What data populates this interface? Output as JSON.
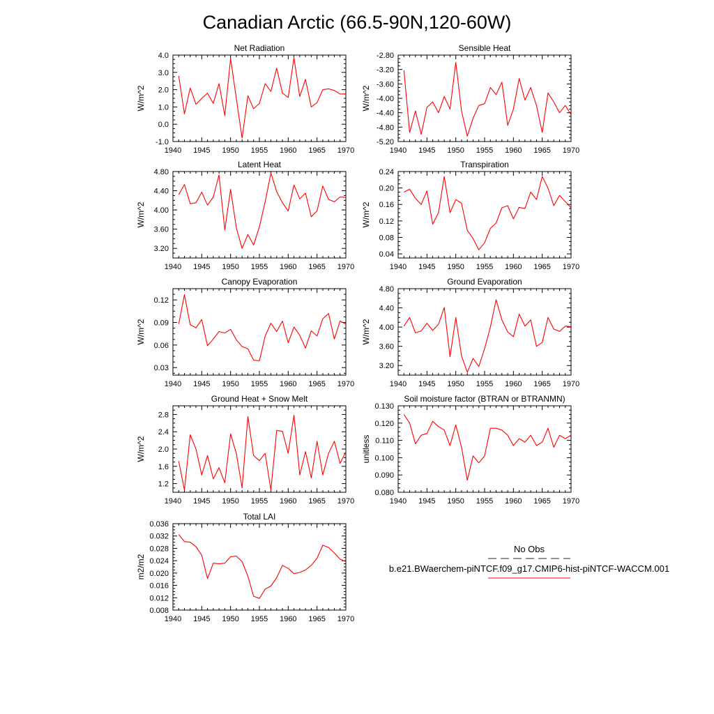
{
  "title": "Canadian Arctic (66.5-90N,120-60W)",
  "series_color": "#ff0000",
  "obs_color": "#222222",
  "legend": {
    "obs_label": "No Obs",
    "model_label": "b.e21.BWaerchem-piNTCF.f09_g17.CMIP6-hist-piNTCF-WACCM.001"
  },
  "chart_data": [
    {
      "type": "line",
      "title": "Net Radiation",
      "ylabel": "W/m^2",
      "xlim": [
        1940,
        1970
      ],
      "ylim": [
        -1.0,
        4.0
      ],
      "x_ticks": [
        1940,
        1945,
        1950,
        1955,
        1960,
        1965,
        1970
      ],
      "y_ticks": [
        -1.0,
        0.0,
        1.0,
        2.0,
        3.0,
        4.0
      ],
      "y_tick_labels": [
        "-1.0",
        "0.0",
        "1.0",
        "2.0",
        "3.0",
        "4.0"
      ],
      "x": [
        1941,
        1942,
        1943,
        1944,
        1945,
        1946,
        1947,
        1948,
        1949,
        1950,
        1951,
        1952,
        1953,
        1954,
        1955,
        1956,
        1957,
        1958,
        1959,
        1960,
        1961,
        1962,
        1963,
        1964,
        1965,
        1966,
        1967,
        1968,
        1969,
        1970
      ],
      "values": [
        2.8,
        0.6,
        2.1,
        1.15,
        1.5,
        1.8,
        1.2,
        2.35,
        0.5,
        3.8,
        1.5,
        -0.8,
        1.65,
        0.9,
        1.2,
        2.35,
        1.9,
        3.25,
        1.8,
        1.55,
        3.85,
        1.6,
        2.6,
        1.0,
        1.25,
        2.0,
        2.05,
        1.95,
        1.75,
        1.75
      ]
    },
    {
      "type": "line",
      "title": "Sensible Heat",
      "ylabel": "W/m^2",
      "xlim": [
        1940,
        1970
      ],
      "ylim": [
        -5.2,
        -2.8
      ],
      "x_ticks": [
        1940,
        1945,
        1950,
        1955,
        1960,
        1965,
        1970
      ],
      "y_ticks": [
        -5.2,
        -4.8,
        -4.4,
        -4.0,
        -3.6,
        -3.2,
        -2.8
      ],
      "y_tick_labels": [
        "-5.20",
        "-4.80",
        "-4.40",
        "-4.00",
        "-3.60",
        "-3.20",
        "-2.80"
      ],
      "x": [
        1941,
        1942,
        1943,
        1944,
        1945,
        1946,
        1947,
        1948,
        1949,
        1950,
        1951,
        1952,
        1953,
        1954,
        1955,
        1956,
        1957,
        1958,
        1959,
        1960,
        1961,
        1962,
        1963,
        1964,
        1965,
        1966,
        1967,
        1968,
        1969,
        1970
      ],
      "values": [
        -3.22,
        -4.95,
        -4.35,
        -5.0,
        -4.25,
        -4.1,
        -4.4,
        -3.95,
        -4.3,
        -3.0,
        -4.35,
        -5.05,
        -4.55,
        -4.2,
        -4.15,
        -3.7,
        -3.9,
        -3.55,
        -4.75,
        -4.3,
        -3.45,
        -4.05,
        -3.7,
        -4.2,
        -4.95,
        -3.85,
        -4.1,
        -4.4,
        -4.2,
        -4.45
      ]
    },
    {
      "type": "line",
      "title": "Latent Heat",
      "ylabel": "W/m^2",
      "xlim": [
        1940,
        1970
      ],
      "ylim": [
        3.0,
        4.8
      ],
      "x_ticks": [
        1940,
        1945,
        1950,
        1955,
        1960,
        1965,
        1970
      ],
      "y_ticks": [
        3.2,
        3.6,
        4.0,
        4.4,
        4.8
      ],
      "y_tick_labels": [
        "3.20",
        "3.60",
        "4.00",
        "4.40",
        "4.80"
      ],
      "x": [
        1941,
        1942,
        1943,
        1944,
        1945,
        1946,
        1947,
        1948,
        1949,
        1950,
        1951,
        1952,
        1953,
        1954,
        1955,
        1956,
        1957,
        1958,
        1959,
        1960,
        1961,
        1962,
        1963,
        1964,
        1965,
        1966,
        1967,
        1968,
        1969,
        1970
      ],
      "values": [
        4.32,
        4.53,
        4.13,
        4.15,
        4.37,
        4.1,
        4.27,
        4.73,
        3.58,
        4.43,
        3.63,
        3.2,
        3.49,
        3.27,
        3.65,
        4.17,
        4.77,
        4.38,
        4.15,
        3.98,
        4.52,
        4.23,
        4.35,
        3.86,
        3.98,
        4.5,
        4.22,
        4.17,
        4.27,
        4.26
      ]
    },
    {
      "type": "line",
      "title": "Transpiration",
      "ylabel": "W/m^2",
      "xlim": [
        1940,
        1970
      ],
      "ylim": [
        0.03,
        0.24
      ],
      "x_ticks": [
        1940,
        1945,
        1950,
        1955,
        1960,
        1965,
        1970
      ],
      "y_ticks": [
        0.04,
        0.08,
        0.12,
        0.16,
        0.2,
        0.24
      ],
      "y_tick_labels": [
        "0.04",
        "0.08",
        "0.12",
        "0.16",
        "0.20",
        "0.24"
      ],
      "x": [
        1941,
        1942,
        1943,
        1944,
        1945,
        1946,
        1947,
        1948,
        1949,
        1950,
        1951,
        1952,
        1953,
        1954,
        1955,
        1956,
        1957,
        1958,
        1959,
        1960,
        1961,
        1962,
        1963,
        1964,
        1965,
        1966,
        1967,
        1968,
        1969,
        1970
      ],
      "values": [
        0.19,
        0.197,
        0.175,
        0.16,
        0.193,
        0.112,
        0.14,
        0.228,
        0.14,
        0.172,
        0.163,
        0.097,
        0.077,
        0.05,
        0.067,
        0.102,
        0.115,
        0.152,
        0.157,
        0.125,
        0.153,
        0.15,
        0.19,
        0.172,
        0.228,
        0.2,
        0.157,
        0.182,
        0.167,
        0.152
      ]
    },
    {
      "type": "line",
      "title": "Canopy Evaporation",
      "ylabel": "W/m^2",
      "xlim": [
        1940,
        1970
      ],
      "ylim": [
        0.02,
        0.135
      ],
      "x_ticks": [
        1940,
        1945,
        1950,
        1955,
        1960,
        1965,
        1970
      ],
      "y_ticks": [
        0.03,
        0.06,
        0.09,
        0.12
      ],
      "y_tick_labels": [
        "0.03",
        "0.06",
        "0.09",
        "0.12"
      ],
      "x": [
        1941,
        1942,
        1943,
        1944,
        1945,
        1946,
        1947,
        1948,
        1949,
        1950,
        1951,
        1952,
        1953,
        1954,
        1955,
        1956,
        1957,
        1958,
        1959,
        1960,
        1961,
        1962,
        1963,
        1964,
        1965,
        1966,
        1967,
        1968,
        1969,
        1970
      ],
      "values": [
        0.088,
        0.127,
        0.087,
        0.083,
        0.094,
        0.059,
        0.068,
        0.078,
        0.076,
        0.081,
        0.067,
        0.058,
        0.055,
        0.04,
        0.039,
        0.072,
        0.089,
        0.078,
        0.092,
        0.063,
        0.084,
        0.073,
        0.056,
        0.079,
        0.072,
        0.095,
        0.102,
        0.068,
        0.092,
        0.088
      ]
    },
    {
      "type": "line",
      "title": "Ground Evaporation",
      "ylabel": "W/m^2",
      "xlim": [
        1940,
        1970
      ],
      "ylim": [
        3.0,
        4.8
      ],
      "x_ticks": [
        1940,
        1945,
        1950,
        1955,
        1960,
        1965,
        1970
      ],
      "y_ticks": [
        3.2,
        3.6,
        4.0,
        4.4,
        4.8
      ],
      "y_tick_labels": [
        "3.20",
        "3.60",
        "4.00",
        "4.40",
        "4.80"
      ],
      "x": [
        1941,
        1942,
        1943,
        1944,
        1945,
        1946,
        1947,
        1948,
        1949,
        1950,
        1951,
        1952,
        1953,
        1954,
        1955,
        1956,
        1957,
        1958,
        1959,
        1960,
        1961,
        1962,
        1963,
        1964,
        1965,
        1966,
        1967,
        1968,
        1969,
        1970
      ],
      "values": [
        4.02,
        4.2,
        3.88,
        3.92,
        4.08,
        3.93,
        4.06,
        4.41,
        3.38,
        4.2,
        3.4,
        3.06,
        3.35,
        3.18,
        3.55,
        4.0,
        4.57,
        4.15,
        3.9,
        3.8,
        4.27,
        4.02,
        4.15,
        3.6,
        3.68,
        4.2,
        3.96,
        3.91,
        4.02,
        4.01
      ]
    },
    {
      "type": "line",
      "title": "Ground Heat + Snow Melt",
      "ylabel": "W/m^2",
      "xlim": [
        1940,
        1970
      ],
      "ylim": [
        1.0,
        3.0
      ],
      "x_ticks": [
        1940,
        1945,
        1950,
        1955,
        1960,
        1965,
        1970
      ],
      "y_ticks": [
        1.2,
        1.6,
        2.0,
        2.4,
        2.8
      ],
      "y_tick_labels": [
        "1.2",
        "1.6",
        "2.0",
        "2.4",
        "2.8"
      ],
      "x": [
        1941,
        1942,
        1943,
        1944,
        1945,
        1946,
        1947,
        1948,
        1949,
        1950,
        1951,
        1952,
        1953,
        1954,
        1955,
        1956,
        1957,
        1958,
        1959,
        1960,
        1961,
        1962,
        1963,
        1964,
        1965,
        1966,
        1967,
        1968,
        1969,
        1970
      ],
      "values": [
        1.72,
        1.05,
        2.33,
        2.0,
        1.4,
        1.85,
        1.31,
        1.57,
        1.22,
        2.35,
        1.9,
        1.1,
        2.75,
        1.85,
        1.73,
        1.9,
        1.05,
        2.43,
        2.41,
        1.9,
        2.78,
        1.4,
        1.94,
        1.33,
        2.18,
        1.4,
        1.9,
        2.18,
        1.67,
        1.93
      ]
    },
    {
      "type": "line",
      "title": "Soil moisture factor (BTRAN or BTRANMN)",
      "ylabel": "unitless",
      "xlim": [
        1940,
        1970
      ],
      "ylim": [
        0.08,
        0.13
      ],
      "x_ticks": [
        1940,
        1945,
        1950,
        1955,
        1960,
        1965,
        1970
      ],
      "y_ticks": [
        0.08,
        0.09,
        0.1,
        0.11,
        0.12,
        0.13
      ],
      "y_tick_labels": [
        "0.080",
        "0.090",
        "0.100",
        "0.110",
        "0.120",
        "0.130"
      ],
      "x": [
        1941,
        1942,
        1943,
        1944,
        1945,
        1946,
        1947,
        1948,
        1949,
        1950,
        1951,
        1952,
        1953,
        1954,
        1955,
        1956,
        1957,
        1958,
        1959,
        1960,
        1961,
        1962,
        1963,
        1964,
        1965,
        1966,
        1967,
        1968,
        1969,
        1970
      ],
      "values": [
        0.125,
        0.12,
        0.108,
        0.113,
        0.114,
        0.121,
        0.118,
        0.116,
        0.107,
        0.119,
        0.106,
        0.087,
        0.101,
        0.097,
        0.101,
        0.117,
        0.117,
        0.116,
        0.113,
        0.107,
        0.111,
        0.109,
        0.113,
        0.107,
        0.109,
        0.117,
        0.106,
        0.113,
        0.111,
        0.113
      ]
    },
    {
      "type": "line",
      "title": "Total LAI",
      "ylabel": "m2/m2",
      "xlim": [
        1940,
        1970
      ],
      "ylim": [
        0.008,
        0.036
      ],
      "x_ticks": [
        1940,
        1945,
        1950,
        1955,
        1960,
        1965,
        1970
      ],
      "y_ticks": [
        0.008,
        0.012,
        0.016,
        0.02,
        0.024,
        0.028,
        0.032,
        0.036
      ],
      "y_tick_labels": [
        "0.008",
        "0.012",
        "0.016",
        "0.020",
        "0.024",
        "0.028",
        "0.032",
        "0.036"
      ],
      "x": [
        1941,
        1942,
        1943,
        1944,
        1945,
        1946,
        1947,
        1948,
        1949,
        1950,
        1951,
        1952,
        1953,
        1954,
        1955,
        1956,
        1957,
        1958,
        1959,
        1960,
        1961,
        1962,
        1963,
        1964,
        1965,
        1966,
        1967,
        1968,
        1969,
        1970
      ],
      "values": [
        0.0325,
        0.0302,
        0.03,
        0.0285,
        0.0258,
        0.0182,
        0.0232,
        0.023,
        0.0232,
        0.0253,
        0.0255,
        0.0237,
        0.019,
        0.0125,
        0.0118,
        0.0148,
        0.0158,
        0.0185,
        0.0225,
        0.0215,
        0.0198,
        0.0202,
        0.021,
        0.0225,
        0.0248,
        0.029,
        0.0283,
        0.0265,
        0.0245,
        0.0237
      ]
    }
  ]
}
